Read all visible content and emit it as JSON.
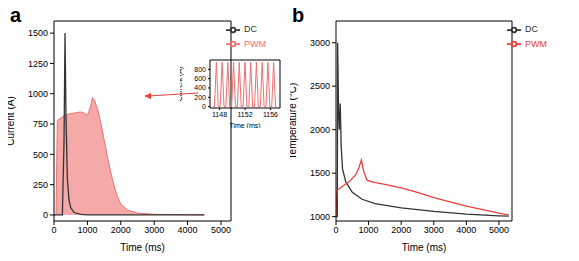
{
  "chart_data": [
    {
      "type": "line",
      "title": "a",
      "x_label": "Time (ms)",
      "y_label": "Current (A)",
      "xlim": [
        0,
        5300
      ],
      "xticks": [
        0,
        1000,
        2000,
        3000,
        4000,
        5000
      ],
      "ylim": [
        -50,
        1600
      ],
      "yticks": [
        0,
        250,
        500,
        750,
        1000,
        1250,
        1500
      ],
      "legend": "upper right",
      "series": [
        {
          "name": "DC",
          "color": "#333333",
          "type": "line",
          "x": [
            0,
            250,
            300,
            330,
            360,
            400,
            450,
            500,
            600,
            800,
            1000,
            2000,
            3000,
            4000,
            4500
          ],
          "values": [
            0,
            0,
            600,
            1500,
            800,
            300,
            120,
            60,
            20,
            5,
            0,
            0,
            0,
            0,
            0
          ]
        },
        {
          "name": "PWM",
          "color": "#f07070",
          "type": "area",
          "x": [
            0,
            60,
            100,
            200,
            400,
            600,
            800,
            900,
            1000,
            1100,
            1150,
            1200,
            1300,
            1400,
            1500,
            1600,
            1700,
            1800,
            1900,
            2000,
            2200,
            2500,
            3000,
            4000,
            4500
          ],
          "values": [
            0,
            0,
            780,
            800,
            830,
            840,
            850,
            840,
            820,
            900,
            970,
            950,
            880,
            760,
            620,
            480,
            350,
            240,
            150,
            90,
            40,
            15,
            5,
            2,
            0
          ]
        }
      ]
    },
    {
      "type": "line",
      "x_label": "Time (ms)",
      "y_label": "Current (A)",
      "xlim": [
        1146.5,
        1157.5
      ],
      "xticks": [
        1148,
        1152,
        1156
      ],
      "ylim": [
        -30,
        1000
      ],
      "yticks": [
        0,
        200,
        400,
        600,
        800
      ],
      "series": [
        {
          "name": "PWM",
          "color": "#f07070",
          "type": "line",
          "x": [
            1147.0,
            1147.2,
            1147.5,
            1147.8,
            1148.1,
            1148.4,
            1148.7,
            1149.0,
            1149.3,
            1149.6,
            1149.9,
            1150.2,
            1150.5,
            1150.8,
            1151.1,
            1151.4,
            1151.7,
            1152.0,
            1152.3,
            1152.6,
            1152.9,
            1153.2,
            1153.5,
            1153.8,
            1154.1,
            1154.4,
            1154.7,
            1155.0,
            1155.3,
            1155.6,
            1155.9,
            1156.2,
            1156.5,
            1156.8,
            1157.0
          ],
          "values": [
            0,
            0,
            950,
            0,
            0,
            950,
            0,
            0,
            950,
            0,
            0,
            950,
            0,
            0,
            950,
            0,
            0,
            950,
            0,
            0,
            950,
            0,
            0,
            950,
            0,
            0,
            950,
            0,
            0,
            950,
            0,
            0,
            950,
            0,
            0
          ]
        }
      ]
    },
    {
      "type": "line",
      "title": "b",
      "x_label": "Time (ms)",
      "y_label": "Temperature (°C)",
      "xlim": [
        0,
        5400
      ],
      "xticks": [
        0,
        1000,
        2000,
        3000,
        4000,
        5000
      ],
      "ylim": [
        950,
        3250
      ],
      "yticks": [
        1000,
        1500,
        2000,
        2500,
        3000
      ],
      "legend": "upper right",
      "series": [
        {
          "name": "DC",
          "color": "#333333",
          "type": "line",
          "x": [
            0,
            40,
            50,
            80,
            100,
            130,
            160,
            200,
            300,
            500,
            800,
            1200,
            2000,
            3000,
            4000,
            5000,
            5300
          ],
          "values": [
            1000,
            1000,
            3000,
            2200,
            2000,
            2300,
            1800,
            1550,
            1400,
            1280,
            1200,
            1150,
            1100,
            1060,
            1030,
            1010,
            1005
          ]
        },
        {
          "name": "PWM",
          "color": "#e8403c",
          "type": "line",
          "x": [
            0,
            30,
            200,
            400,
            600,
            700,
            780,
            850,
            950,
            1100,
            1500,
            2000,
            2500,
            3000,
            3500,
            4000,
            4500,
            5000,
            5300
          ],
          "values": [
            1000,
            1300,
            1350,
            1400,
            1480,
            1560,
            1650,
            1520,
            1420,
            1400,
            1370,
            1330,
            1280,
            1220,
            1170,
            1120,
            1080,
            1040,
            1020
          ]
        }
      ]
    }
  ]
}
